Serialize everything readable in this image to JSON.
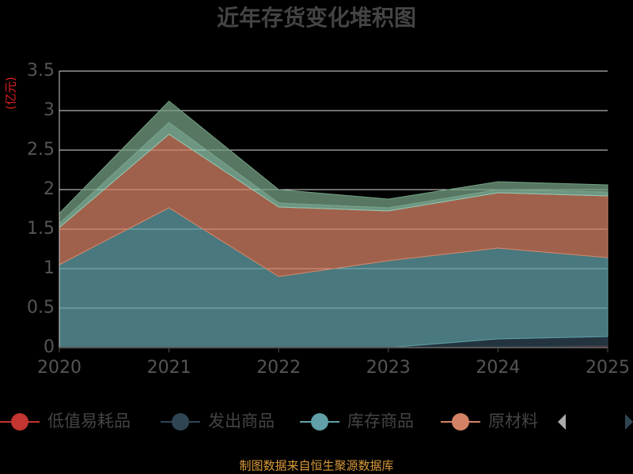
{
  "chart_data": {
    "type": "stacked_area",
    "title": "近年存货变化堆积图",
    "y_label": "(亿元)",
    "source": "制图数据来自恒生聚源数据库",
    "categories": [
      "2020",
      "2021",
      "2022",
      "2023",
      "2024",
      "2025"
    ],
    "ylim": [
      0,
      3.5
    ],
    "yticks": [
      0,
      0.5,
      1,
      1.5,
      2,
      2.5,
      3,
      3.5
    ],
    "grid": true,
    "series": [
      {
        "name": "低值易耗品",
        "color": "#c23531",
        "values": [
          0,
          0,
          0,
          0,
          0.01,
          0.02
        ]
      },
      {
        "name": "发出商品",
        "color": "#2f4554",
        "values": [
          0,
          0,
          0,
          0,
          0.1,
          0.12
        ]
      },
      {
        "name": "库存商品",
        "color": "#61a0a8",
        "values": [
          1.05,
          1.77,
          0.9,
          1.1,
          1.15,
          1.0
        ]
      },
      {
        "name": "原材料",
        "color": "#d48265",
        "values": [
          0.47,
          0.93,
          0.88,
          0.63,
          0.7,
          0.78
        ]
      },
      {
        "color": "#91c7ae",
        "values": [
          0.05,
          0.15,
          0.05,
          0.04,
          0.04,
          0.05
        ]
      },
      {
        "color": "#749f83",
        "values": [
          0.13,
          0.27,
          0.17,
          0.11,
          0.1,
          0.09
        ]
      }
    ]
  }
}
